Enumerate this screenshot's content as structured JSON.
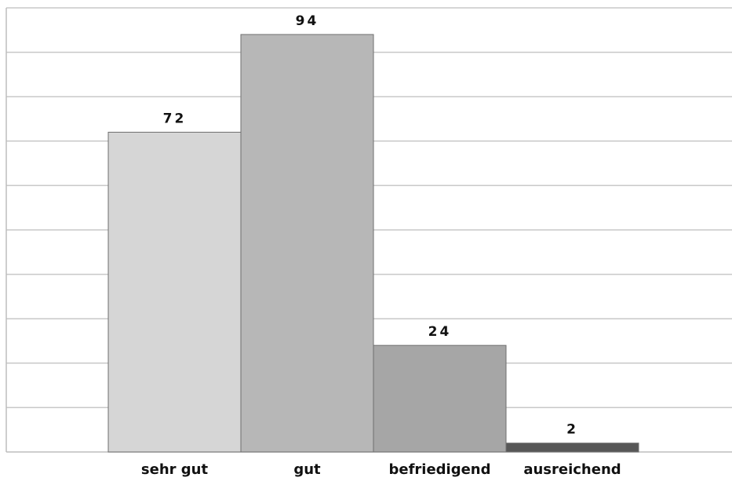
{
  "chart_data": {
    "type": "bar",
    "title": "",
    "xlabel": "",
    "ylabel": "",
    "categories": [
      "sehr gut",
      "gut",
      "befriedigend",
      "ausreichend"
    ],
    "values": [
      72,
      94,
      24,
      2
    ],
    "value_labels": [
      "72",
      "94",
      "24",
      "2"
    ],
    "colors": [
      "#d6d6d6",
      "#b7b7b7",
      "#a6a6a6",
      "#575757"
    ],
    "ylim": [
      0,
      100
    ],
    "gridlines": 10,
    "grid": true,
    "legend": "none"
  }
}
